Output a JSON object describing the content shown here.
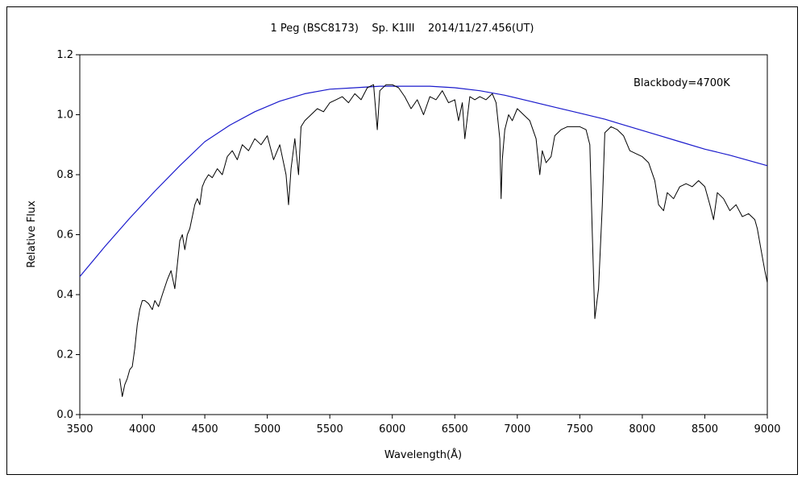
{
  "chart_data": {
    "type": "line",
    "title": "1 Peg (BSC8173)    Sp. K1III    2014/11/27.456(UT)",
    "xlabel": "Wavelength(Å)",
    "ylabel": "Relative Flux",
    "xlim": [
      3500,
      9000
    ],
    "ylim": [
      0,
      1.2
    ],
    "xticks": [
      3500,
      4000,
      4500,
      5000,
      5500,
      6000,
      6500,
      7000,
      7500,
      8000,
      8500,
      9000
    ],
    "yticks": [
      0.0,
      0.2,
      0.4,
      0.6,
      0.8,
      1.0,
      1.2
    ],
    "ytick_labels": [
      "0.0",
      "0.2",
      "0.4",
      "0.6",
      "0.8",
      "1.0",
      "1.2"
    ],
    "grid": false,
    "annotations": [
      {
        "text": "Blackbody=4700K",
        "color": "#1a1acc"
      }
    ],
    "series": [
      {
        "name": "Blackbody=4700K",
        "color": "#1a1acc",
        "x": [
          3500,
          3700,
          3900,
          4100,
          4300,
          4500,
          4700,
          4900,
          5100,
          5300,
          5500,
          5700,
          5900,
          6100,
          6300,
          6500,
          6700,
          6900,
          7100,
          7300,
          7500,
          7700,
          7900,
          8100,
          8300,
          8500,
          8700,
          9000
        ],
        "values": [
          0.46,
          0.56,
          0.655,
          0.745,
          0.83,
          0.91,
          0.965,
          1.01,
          1.045,
          1.07,
          1.085,
          1.09,
          1.095,
          1.095,
          1.095,
          1.09,
          1.08,
          1.065,
          1.045,
          1.025,
          1.005,
          0.985,
          0.96,
          0.935,
          0.91,
          0.885,
          0.865,
          0.83
        ]
      },
      {
        "name": "",
        "color": "#000000",
        "x": [
          3820,
          3840,
          3860,
          3880,
          3900,
          3920,
          3940,
          3960,
          3980,
          4000,
          4020,
          4050,
          4080,
          4100,
          4130,
          4160,
          4200,
          4230,
          4260,
          4280,
          4300,
          4320,
          4340,
          4360,
          4380,
          4400,
          4420,
          4440,
          4460,
          4480,
          4500,
          4530,
          4560,
          4600,
          4640,
          4680,
          4720,
          4760,
          4800,
          4850,
          4900,
          4950,
          5000,
          5050,
          5100,
          5150,
          5170,
          5190,
          5220,
          5250,
          5270,
          5300,
          5350,
          5400,
          5450,
          5500,
          5550,
          5600,
          5650,
          5700,
          5750,
          5800,
          5850,
          5880,
          5900,
          5950,
          6000,
          6050,
          6100,
          6150,
          6200,
          6250,
          6300,
          6350,
          6400,
          6450,
          6500,
          6530,
          6560,
          6580,
          6620,
          6660,
          6700,
          6750,
          6800,
          6830,
          6860,
          6870,
          6880,
          6900,
          6930,
          6960,
          7000,
          7050,
          7100,
          7150,
          7180,
          7200,
          7230,
          7270,
          7300,
          7350,
          7400,
          7450,
          7500,
          7550,
          7580,
          7600,
          7620,
          7650,
          7680,
          7700,
          7750,
          7800,
          7850,
          7900,
          7950,
          8000,
          8050,
          8100,
          8130,
          8170,
          8200,
          8250,
          8300,
          8350,
          8400,
          8450,
          8500,
          8540,
          8570,
          8600,
          8650,
          8700,
          8750,
          8800,
          8850,
          8900,
          8920,
          8950,
          8980,
          9000
        ],
        "values": [
          0.12,
          0.06,
          0.1,
          0.12,
          0.15,
          0.16,
          0.22,
          0.3,
          0.35,
          0.38,
          0.38,
          0.37,
          0.35,
          0.38,
          0.36,
          0.4,
          0.45,
          0.48,
          0.42,
          0.5,
          0.58,
          0.6,
          0.55,
          0.6,
          0.62,
          0.66,
          0.7,
          0.72,
          0.7,
          0.76,
          0.78,
          0.8,
          0.79,
          0.82,
          0.8,
          0.86,
          0.88,
          0.85,
          0.9,
          0.88,
          0.92,
          0.9,
          0.93,
          0.85,
          0.9,
          0.8,
          0.7,
          0.82,
          0.92,
          0.8,
          0.96,
          0.98,
          1.0,
          1.02,
          1.01,
          1.04,
          1.05,
          1.06,
          1.04,
          1.07,
          1.05,
          1.09,
          1.1,
          0.95,
          1.08,
          1.1,
          1.1,
          1.09,
          1.06,
          1.02,
          1.05,
          1.0,
          1.06,
          1.05,
          1.08,
          1.04,
          1.05,
          0.98,
          1.04,
          0.92,
          1.06,
          1.05,
          1.06,
          1.05,
          1.07,
          1.04,
          0.92,
          0.72,
          0.85,
          0.95,
          1.0,
          0.98,
          1.02,
          1.0,
          0.98,
          0.92,
          0.8,
          0.88,
          0.84,
          0.86,
          0.93,
          0.95,
          0.96,
          0.96,
          0.96,
          0.95,
          0.9,
          0.6,
          0.32,
          0.42,
          0.7,
          0.94,
          0.96,
          0.95,
          0.93,
          0.88,
          0.87,
          0.86,
          0.84,
          0.78,
          0.7,
          0.68,
          0.74,
          0.72,
          0.76,
          0.77,
          0.76,
          0.78,
          0.76,
          0.7,
          0.65,
          0.74,
          0.72,
          0.68,
          0.7,
          0.66,
          0.67,
          0.65,
          0.62,
          0.55,
          0.48,
          0.44
        ]
      }
    ]
  }
}
